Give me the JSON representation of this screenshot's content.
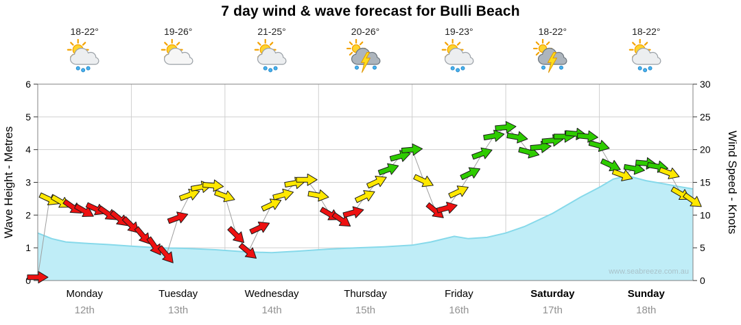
{
  "title": "7 day wind & wave forecast for Bulli Beach",
  "watermark": "www.seabreeze.com.au",
  "days": [
    {
      "name": "Monday",
      "date": "12th",
      "temp": "18-22°",
      "icon": "sun-cloud-rain",
      "bold": false
    },
    {
      "name": "Tuesday",
      "date": "13th",
      "temp": "19-26°",
      "icon": "sun-cloud",
      "bold": false
    },
    {
      "name": "Wednesday",
      "date": "14th",
      "temp": "21-25°",
      "icon": "sun-cloud-rain",
      "bold": false
    },
    {
      "name": "Thursday",
      "date": "15th",
      "temp": "20-26°",
      "icon": "storm",
      "bold": false
    },
    {
      "name": "Friday",
      "date": "16th",
      "temp": "19-23°",
      "icon": "sun-cloud-rain",
      "bold": false
    },
    {
      "name": "Saturday",
      "date": "17th",
      "temp": "18-22°",
      "icon": "storm",
      "bold": true
    },
    {
      "name": "Sunday",
      "date": "18th",
      "temp": "18-22°",
      "icon": "sun-cloud-rain",
      "bold": true
    }
  ],
  "axes": {
    "left_label": "Wave Height - Metres",
    "left_ticks": [
      0,
      1,
      2,
      3,
      4,
      5,
      6
    ],
    "left_range": [
      0,
      6
    ],
    "right_label": "Wind Speed - Knots",
    "right_ticks": [
      0,
      5,
      10,
      15,
      20,
      25,
      30
    ],
    "right_range": [
      0,
      30
    ]
  },
  "chart_data": {
    "type": "area",
    "title": "7 day wind & wave forecast for Bulli Beach",
    "categories": [
      "Monday 12th",
      "Tuesday 13th",
      "Wednesday 14th",
      "Thursday 15th",
      "Friday 16th",
      "Saturday 17th",
      "Sunday 18th"
    ],
    "x_unit": "days (0 = Monday 00:00, 7 = Sunday 24:00)",
    "ylim_left": [
      0,
      6
    ],
    "ylim_right": [
      0,
      30
    ],
    "grid": true,
    "wave_series": {
      "name": "Wave Height",
      "unit": "m",
      "axis": "left",
      "style": "filled-area",
      "points": [
        [
          0,
          1.45
        ],
        [
          0.15,
          1.28
        ],
        [
          0.3,
          1.18
        ],
        [
          0.5,
          1.14
        ],
        [
          0.75,
          1.1
        ],
        [
          1.0,
          1.05
        ],
        [
          1.3,
          1.0
        ],
        [
          1.6,
          0.98
        ],
        [
          1.9,
          0.94
        ],
        [
          2.2,
          0.88
        ],
        [
          2.5,
          0.85
        ],
        [
          2.8,
          0.9
        ],
        [
          3.1,
          0.96
        ],
        [
          3.4,
          1.0
        ],
        [
          3.7,
          1.03
        ],
        [
          4.0,
          1.08
        ],
        [
          4.2,
          1.18
        ],
        [
          4.45,
          1.35
        ],
        [
          4.6,
          1.28
        ],
        [
          4.8,
          1.32
        ],
        [
          5.0,
          1.45
        ],
        [
          5.2,
          1.65
        ],
        [
          5.5,
          2.05
        ],
        [
          5.8,
          2.55
        ],
        [
          6.0,
          2.85
        ],
        [
          6.15,
          3.1
        ],
        [
          6.3,
          3.2
        ],
        [
          6.5,
          3.05
        ],
        [
          6.7,
          2.95
        ],
        [
          6.85,
          2.87
        ],
        [
          7.0,
          2.8
        ]
      ]
    },
    "wind_series": {
      "name": "Wind Speed",
      "unit": "knots",
      "axis": "right",
      "style": "wind-arrows",
      "arrows": [
        {
          "d": 0.0,
          "kn": 0.5,
          "dir": 0,
          "c": "red"
        },
        {
          "d": 0.125,
          "kn": 12.4,
          "dir": 25,
          "c": "yellow"
        },
        {
          "d": 0.25,
          "kn": 12.0,
          "dir": 30,
          "c": "yellow"
        },
        {
          "d": 0.375,
          "kn": 11.2,
          "dir": 35,
          "c": "red"
        },
        {
          "d": 0.5,
          "kn": 10.6,
          "dir": 30,
          "c": "red"
        },
        {
          "d": 0.625,
          "kn": 10.9,
          "dir": 25,
          "c": "red"
        },
        {
          "d": 0.75,
          "kn": 10.2,
          "dir": 35,
          "c": "red"
        },
        {
          "d": 0.875,
          "kn": 9.4,
          "dir": 40,
          "c": "red"
        },
        {
          "d": 1.0,
          "kn": 8.4,
          "dir": 45,
          "c": "red"
        },
        {
          "d": 1.125,
          "kn": 6.8,
          "dir": 50,
          "c": "red"
        },
        {
          "d": 1.25,
          "kn": 5.2,
          "dir": 55,
          "c": "red"
        },
        {
          "d": 1.375,
          "kn": 3.9,
          "dir": 50,
          "c": "red"
        },
        {
          "d": 1.5,
          "kn": 9.6,
          "dir": -20,
          "c": "red"
        },
        {
          "d": 1.625,
          "kn": 13.1,
          "dir": -20,
          "c": "yellow"
        },
        {
          "d": 1.75,
          "kn": 14.3,
          "dir": -10,
          "c": "yellow"
        },
        {
          "d": 1.875,
          "kn": 14.5,
          "dir": 5,
          "c": "yellow"
        },
        {
          "d": 2.0,
          "kn": 12.9,
          "dir": 20,
          "c": "yellow"
        },
        {
          "d": 2.125,
          "kn": 6.9,
          "dir": 45,
          "c": "red"
        },
        {
          "d": 2.25,
          "kn": 4.4,
          "dir": 40,
          "c": "red"
        },
        {
          "d": 2.375,
          "kn": 8.1,
          "dir": -25,
          "c": "red"
        },
        {
          "d": 2.5,
          "kn": 11.6,
          "dir": -25,
          "c": "yellow"
        },
        {
          "d": 2.625,
          "kn": 13.1,
          "dir": -15,
          "c": "yellow"
        },
        {
          "d": 2.75,
          "kn": 14.9,
          "dir": -10,
          "c": "yellow"
        },
        {
          "d": 2.875,
          "kn": 15.4,
          "dir": 0,
          "c": "yellow"
        },
        {
          "d": 3.0,
          "kn": 13.0,
          "dir": 10,
          "c": "yellow"
        },
        {
          "d": 3.125,
          "kn": 10.1,
          "dir": 30,
          "c": "red"
        },
        {
          "d": 3.25,
          "kn": 9.2,
          "dir": 35,
          "c": "red"
        },
        {
          "d": 3.375,
          "kn": 10.4,
          "dir": -15,
          "c": "red"
        },
        {
          "d": 3.5,
          "kn": 12.9,
          "dir": -25,
          "c": "yellow"
        },
        {
          "d": 3.625,
          "kn": 15.1,
          "dir": -25,
          "c": "yellow"
        },
        {
          "d": 3.75,
          "kn": 17.0,
          "dir": -20,
          "c": "green"
        },
        {
          "d": 3.875,
          "kn": 19.0,
          "dir": -15,
          "c": "green"
        },
        {
          "d": 4.0,
          "kn": 20.0,
          "dir": -5,
          "c": "green"
        },
        {
          "d": 4.125,
          "kn": 15.2,
          "dir": 25,
          "c": "yellow"
        },
        {
          "d": 4.25,
          "kn": 10.6,
          "dir": 40,
          "c": "red"
        },
        {
          "d": 4.375,
          "kn": 11.1,
          "dir": -15,
          "c": "red"
        },
        {
          "d": 4.5,
          "kn": 13.6,
          "dir": -25,
          "c": "yellow"
        },
        {
          "d": 4.625,
          "kn": 16.4,
          "dir": -25,
          "c": "green"
        },
        {
          "d": 4.75,
          "kn": 19.4,
          "dir": -20,
          "c": "green"
        },
        {
          "d": 4.875,
          "kn": 22.1,
          "dir": -10,
          "c": "green"
        },
        {
          "d": 5.0,
          "kn": 23.4,
          "dir": -5,
          "c": "green"
        },
        {
          "d": 5.125,
          "kn": 21.9,
          "dir": 10,
          "c": "green"
        },
        {
          "d": 5.25,
          "kn": 19.6,
          "dir": 15,
          "c": "green"
        },
        {
          "d": 5.375,
          "kn": 20.4,
          "dir": -5,
          "c": "green"
        },
        {
          "d": 5.5,
          "kn": 21.4,
          "dir": -5,
          "c": "green"
        },
        {
          "d": 5.625,
          "kn": 22.0,
          "dir": 0,
          "c": "green"
        },
        {
          "d": 5.75,
          "kn": 22.4,
          "dir": 5,
          "c": "green"
        },
        {
          "d": 5.875,
          "kn": 22.0,
          "dir": 5,
          "c": "green"
        },
        {
          "d": 6.0,
          "kn": 20.6,
          "dir": 15,
          "c": "green"
        },
        {
          "d": 6.125,
          "kn": 17.6,
          "dir": 25,
          "c": "green"
        },
        {
          "d": 6.25,
          "kn": 16.1,
          "dir": 20,
          "c": "yellow"
        },
        {
          "d": 6.375,
          "kn": 17.1,
          "dir": 10,
          "c": "green"
        },
        {
          "d": 6.5,
          "kn": 17.9,
          "dir": 5,
          "c": "green"
        },
        {
          "d": 6.625,
          "kn": 17.4,
          "dir": 10,
          "c": "green"
        },
        {
          "d": 6.75,
          "kn": 16.4,
          "dir": 20,
          "c": "yellow"
        },
        {
          "d": 6.875,
          "kn": 13.2,
          "dir": 30,
          "c": "yellow"
        },
        {
          "d": 7.0,
          "kn": 12.2,
          "dir": 35,
          "c": "yellow"
        }
      ]
    },
    "colors": {
      "wave_fill": "#BFEDF7",
      "wave_line": "#86D9EA",
      "arrow_red": "#EE1111",
      "arrow_yellow": "#FFE800",
      "arrow_green": "#2ECC00",
      "grid": "#CFCFCF",
      "frame": "#808080",
      "connector": "#9E9E9E",
      "date_text": "#919191",
      "watermark_text": "#A9C2CA"
    }
  }
}
